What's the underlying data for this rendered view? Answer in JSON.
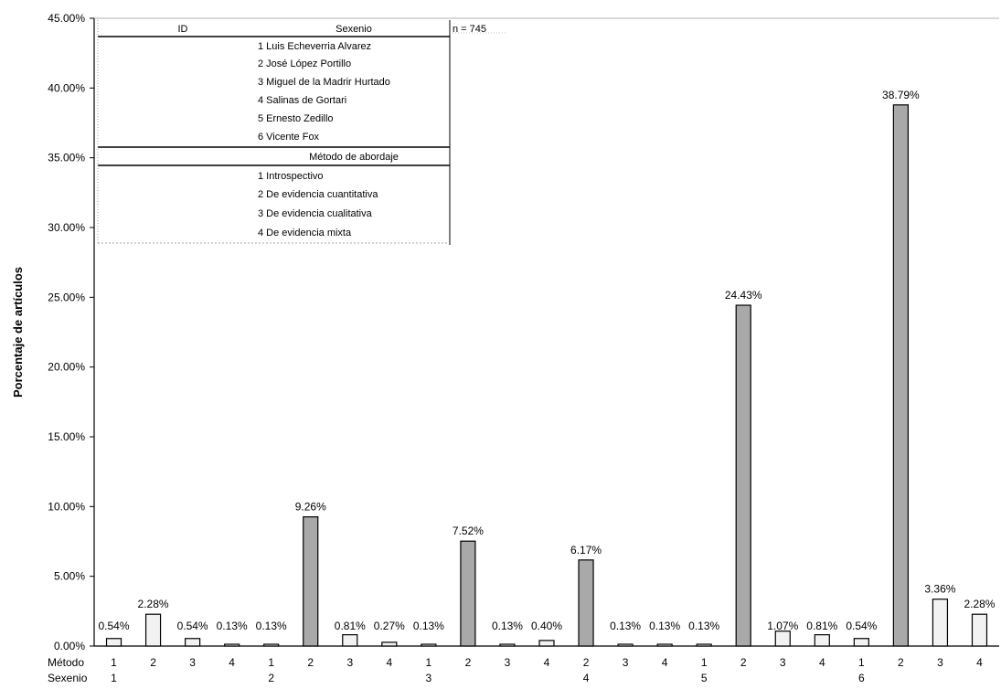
{
  "chart_data": {
    "type": "bar",
    "ylabel": "Porcentaje de artículos",
    "ylim": [
      0,
      45
    ],
    "y_ticks": [
      "0.00%",
      "5.00%",
      "10.00%",
      "15.00%",
      "20.00%",
      "25.00%",
      "30.00%",
      "35.00%",
      "40.00%",
      "45.00%"
    ],
    "x_row_labels": [
      "Método",
      "Sexenio"
    ],
    "metodo": [
      "1",
      "2",
      "3",
      "4",
      "1",
      "2",
      "3",
      "4",
      "1",
      "2",
      "3",
      "4",
      "2",
      "3",
      "4",
      "1",
      "2",
      "3",
      "4",
      "1",
      "2",
      "3",
      "4"
    ],
    "sexenio_labels": [
      {
        "label": "1",
        "at": 0
      },
      {
        "label": "2",
        "at": 4
      },
      {
        "label": "3",
        "at": 8
      },
      {
        "label": "4",
        "at": 12
      },
      {
        "label": "5",
        "at": 15
      },
      {
        "label": "6",
        "at": 19
      }
    ],
    "values": [
      0.54,
      2.28,
      0.54,
      0.13,
      0.13,
      9.26,
      0.81,
      0.27,
      0.13,
      7.52,
      0.13,
      0.4,
      6.17,
      0.13,
      0.13,
      0.13,
      24.43,
      1.07,
      0.81,
      0.54,
      38.79,
      3.36,
      2.28
    ],
    "value_labels": [
      "0.54%",
      "2.28%",
      "0.54%",
      "0.13%",
      "0.13%",
      "9.26%",
      "0.81%",
      "0.27%",
      "0.13%",
      "7.52%",
      "0.13%",
      "0.40%",
      "6.17%",
      "0.13%",
      "0.13%",
      "0.13%",
      "24.43%",
      "1.07%",
      "0.81%",
      "0.54%",
      "38.79%",
      "3.36%",
      "2.28%"
    ],
    "shade": [
      "light",
      "light",
      "light",
      "light",
      "light",
      "dark",
      "light",
      "light",
      "light",
      "dark",
      "light",
      "light",
      "dark",
      "light",
      "light",
      "light",
      "dark",
      "light",
      "light",
      "light",
      "dark",
      "light",
      "light"
    ],
    "colors": {
      "light": "#f2f2f2",
      "dark": "#a9a9a9",
      "axis": "#000000"
    },
    "grid": false
  },
  "legend": {
    "n_label": "n = 745",
    "header_id": "ID",
    "header_sexenio": "Sexenio",
    "sexenios": [
      "1 Luis Echeverria Alvarez",
      "2 José López Portillo",
      "3 Miguel de la Madrir Hurtado",
      "4 Salinas de Gortari",
      "5 Ernesto Zedillo",
      "6 Vicente Fox"
    ],
    "metodo_header": "Método de abordaje",
    "metodos": [
      "1 Introspectivo",
      "2 De evidencia cuantitativa",
      "3 De evidencia cualitativa",
      "4 De evidencia mixta"
    ]
  }
}
